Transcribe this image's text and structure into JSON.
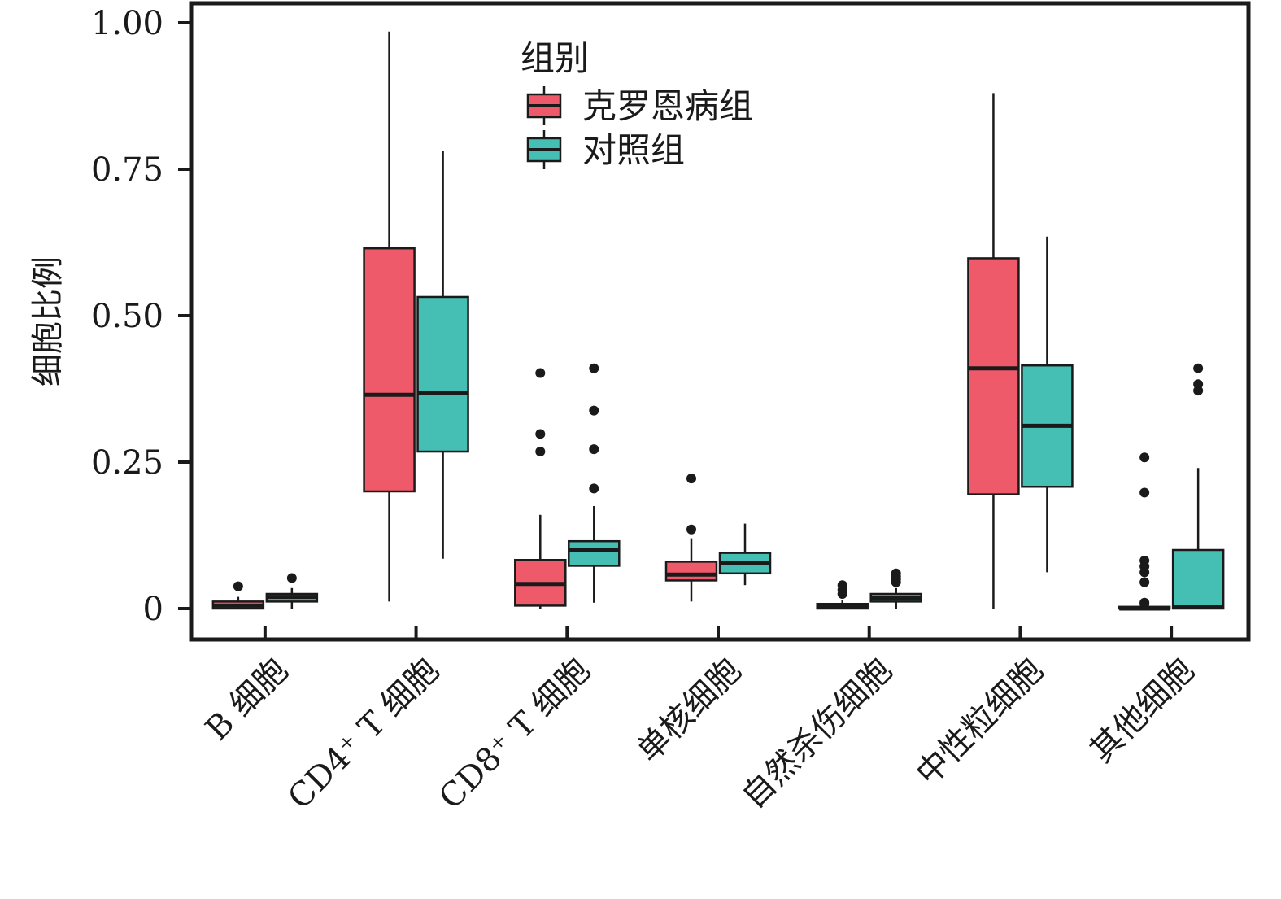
{
  "chart_data": {
    "type": "box",
    "title": "",
    "xlabel": "",
    "ylabel": "细胞比例",
    "ylim": [
      -0.05,
      1.04
    ],
    "yticks": [
      0,
      0.25,
      0.5,
      0.75,
      1.0
    ],
    "ytick_labels": [
      "0",
      "0.25",
      "0.50",
      "0.75",
      "1.00"
    ],
    "grid": false,
    "legend": {
      "title": "组别",
      "position": "top-center",
      "entries": [
        "克罗恩病组",
        "对照组"
      ]
    },
    "categories": [
      "B 细胞",
      "CD4⁺ T 细胞",
      "CD8⁺ T 细胞",
      "单核细胞",
      "自然杀伤细胞",
      "中性粒细胞",
      "其他细胞"
    ],
    "series": [
      {
        "name": "克罗恩病组",
        "color": "#EE5A6A",
        "boxes": [
          {
            "whisker_low": 0.0,
            "q1": 0.0,
            "median": 0.005,
            "q3": 0.012,
            "whisker_high": 0.02,
            "outliers": [
              0.038
            ]
          },
          {
            "whisker_low": 0.012,
            "q1": 0.2,
            "median": 0.365,
            "q3": 0.615,
            "whisker_high": 0.985,
            "outliers": []
          },
          {
            "whisker_low": 0.0,
            "q1": 0.005,
            "median": 0.042,
            "q3": 0.083,
            "whisker_high": 0.16,
            "outliers": [
              0.268,
              0.298,
              0.402
            ]
          },
          {
            "whisker_low": 0.012,
            "q1": 0.048,
            "median": 0.058,
            "q3": 0.08,
            "whisker_high": 0.12,
            "outliers": [
              0.135,
              0.222
            ]
          },
          {
            "whisker_low": 0.0,
            "q1": 0.0,
            "median": 0.003,
            "q3": 0.008,
            "whisker_high": 0.015,
            "outliers": [
              0.025,
              0.032,
              0.04
            ]
          },
          {
            "whisker_low": 0.0,
            "q1": 0.195,
            "median": 0.41,
            "q3": 0.598,
            "whisker_high": 0.88,
            "outliers": []
          },
          {
            "whisker_low": 0.0,
            "q1": 0.0,
            "median": 0.0,
            "q3": 0.003,
            "whisker_high": 0.005,
            "outliers": [
              0.008,
              0.01,
              0.045,
              0.062,
              0.072,
              0.082,
              0.198,
              0.258
            ]
          }
        ]
      },
      {
        "name": "对照组",
        "color": "#45BFB4",
        "boxes": [
          {
            "whisker_low": 0.0,
            "q1": 0.012,
            "median": 0.02,
            "q3": 0.025,
            "whisker_high": 0.035,
            "outliers": [
              0.052
            ]
          },
          {
            "whisker_low": 0.085,
            "q1": 0.268,
            "median": 0.368,
            "q3": 0.532,
            "whisker_high": 0.782,
            "outliers": []
          },
          {
            "whisker_low": 0.01,
            "q1": 0.073,
            "median": 0.1,
            "q3": 0.115,
            "whisker_high": 0.175,
            "outliers": [
              0.205,
              0.272,
              0.338,
              0.41
            ]
          },
          {
            "whisker_low": 0.04,
            "q1": 0.06,
            "median": 0.077,
            "q3": 0.095,
            "whisker_high": 0.145,
            "outliers": []
          },
          {
            "whisker_low": 0.0,
            "q1": 0.012,
            "median": 0.018,
            "q3": 0.025,
            "whisker_high": 0.035,
            "outliers": [
              0.045,
              0.05,
              0.055,
              0.06
            ]
          },
          {
            "whisker_low": 0.062,
            "q1": 0.208,
            "median": 0.312,
            "q3": 0.415,
            "whisker_high": 0.635,
            "outliers": []
          },
          {
            "whisker_low": 0.0,
            "q1": 0.0,
            "median": 0.002,
            "q3": 0.1,
            "whisker_high": 0.24,
            "outliers": [
              0.372,
              0.383,
              0.41
            ]
          }
        ]
      }
    ]
  }
}
